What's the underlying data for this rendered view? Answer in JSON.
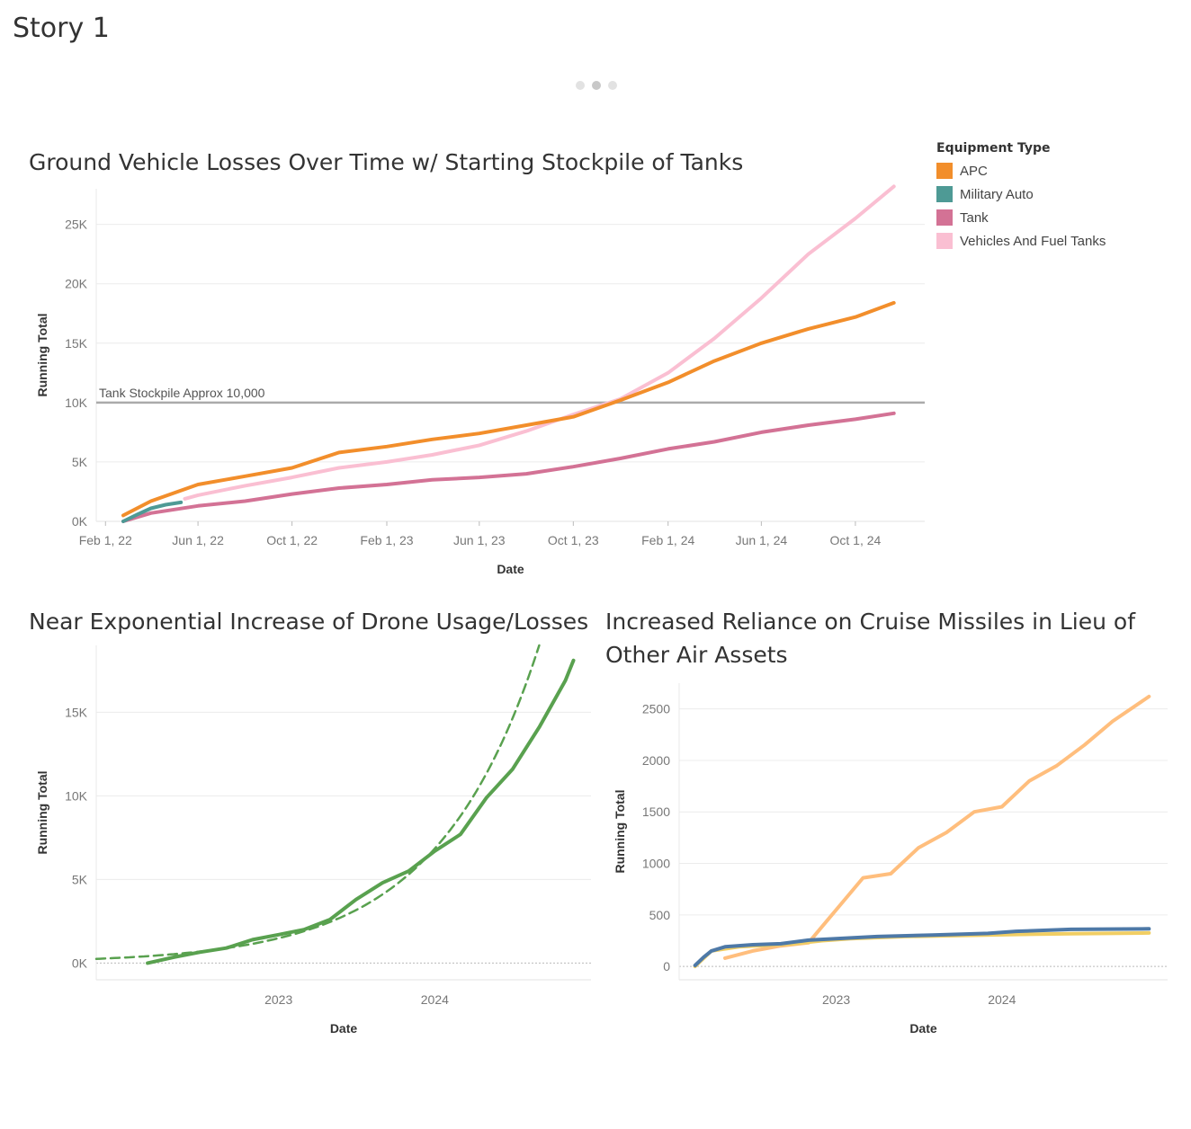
{
  "story": {
    "title": "Story 1"
  },
  "colors": {
    "apc": "#f28e2b",
    "military_auto": "#4e9a95",
    "tank": "#d37295",
    "vehicles": "#fabfd2",
    "drone": "#59a14f",
    "cruise": "#ffbe7d",
    "aircraft": "#f1ce63",
    "helicopter": "#4e79a7",
    "ref_line": "#aaaaaa"
  },
  "legend": {
    "title": "Equipment Type",
    "items": [
      {
        "label": "APC",
        "color": "#f28e2b"
      },
      {
        "label": "Military Auto",
        "color": "#4e9a95"
      },
      {
        "label": "Tank",
        "color": "#d37295"
      },
      {
        "label": "Vehicles And Fuel Tanks",
        "color": "#fabfd2"
      }
    ]
  },
  "chart_data": [
    {
      "type": "line",
      "title": "Ground Vehicle Losses Over Time w/ Starting Stockpile of Tanks",
      "xlabel": "Date",
      "ylabel": "Running Total",
      "x_ticks": [
        "Feb 1, 22",
        "Jun 1, 22",
        "Oct 1, 22",
        "Feb 1, 23",
        "Jun 1, 23",
        "Oct 1, 23",
        "Feb 1, 24",
        "Jun 1, 24",
        "Oct 1, 24"
      ],
      "y_ticks": [
        "0K",
        "5K",
        "10K",
        "15K",
        "20K",
        "25K"
      ],
      "ylim": [
        0,
        28000
      ],
      "grid": true,
      "legend_position": "right",
      "reference_line": {
        "value": 10000,
        "label": "Tank Stockpile Approx 10,000"
      },
      "series": [
        {
          "name": "APC",
          "x": [
            "2022-02-24",
            "2022-04-01",
            "2022-06-01",
            "2022-08-01",
            "2022-10-01",
            "2022-12-01",
            "2023-02-01",
            "2023-04-01",
            "2023-06-01",
            "2023-08-01",
            "2023-10-01",
            "2023-12-01",
            "2024-02-01",
            "2024-04-01",
            "2024-06-01",
            "2024-08-01",
            "2024-10-01",
            "2024-11-20"
          ],
          "values": [
            500,
            1700,
            3100,
            3800,
            4500,
            5800,
            6300,
            6900,
            7400,
            8100,
            8800,
            10200,
            11700,
            13500,
            15000,
            16200,
            17200,
            18400
          ]
        },
        {
          "name": "Military Auto",
          "x": [
            "2022-02-24",
            "2022-03-15",
            "2022-04-01",
            "2022-04-20",
            "2022-05-10"
          ],
          "values": [
            0,
            600,
            1100,
            1400,
            1600
          ]
        },
        {
          "name": "Tank",
          "x": [
            "2022-02-24",
            "2022-04-01",
            "2022-06-01",
            "2022-08-01",
            "2022-10-01",
            "2022-12-01",
            "2023-02-01",
            "2023-04-01",
            "2023-06-01",
            "2023-08-01",
            "2023-10-01",
            "2023-12-01",
            "2024-02-01",
            "2024-04-01",
            "2024-06-01",
            "2024-08-01",
            "2024-10-01",
            "2024-11-20"
          ],
          "values": [
            0,
            700,
            1300,
            1700,
            2300,
            2800,
            3100,
            3500,
            3700,
            4000,
            4600,
            5300,
            6100,
            6700,
            7500,
            8100,
            8600,
            9100
          ]
        },
        {
          "name": "Vehicles And Fuel Tanks",
          "x": [
            "2022-05-15",
            "2022-06-01",
            "2022-08-01",
            "2022-10-01",
            "2022-12-01",
            "2023-02-01",
            "2023-04-01",
            "2023-06-01",
            "2023-08-01",
            "2023-10-01",
            "2023-12-01",
            "2024-02-01",
            "2024-04-01",
            "2024-06-01",
            "2024-08-01",
            "2024-10-01",
            "2024-11-20"
          ],
          "values": [
            1900,
            2200,
            3000,
            3700,
            4500,
            5000,
            5600,
            6400,
            7600,
            9000,
            10300,
            12500,
            15400,
            18800,
            22500,
            25500,
            28200
          ]
        }
      ]
    },
    {
      "type": "line",
      "title": "Near Exponential Increase of Drone Usage/Losses",
      "xlabel": "Date",
      "ylabel": "Running Total",
      "x_ticks": [
        "2023",
        "2024"
      ],
      "y_ticks": [
        "0K",
        "5K",
        "10K",
        "15K"
      ],
      "ylim": [
        -1000,
        19000
      ],
      "grid": true,
      "series": [
        {
          "name": "",
          "x": [
            "2022-03-01",
            "2022-05-01",
            "2022-07-01",
            "2022-09-01",
            "2022-11-01",
            "2023-01-01",
            "2023-03-01",
            "2023-05-01",
            "2023-07-01",
            "2023-09-01",
            "2023-11-01",
            "2024-01-01",
            "2024-03-01",
            "2024-05-01",
            "2024-07-01",
            "2024-09-01",
            "2024-11-01",
            "2024-11-20"
          ],
          "values": [
            0,
            350,
            650,
            900,
            1400,
            1700,
            2000,
            2600,
            3800,
            4800,
            5500,
            6700,
            7700,
            9900,
            11600,
            14100,
            16900,
            18100
          ]
        },
        {
          "name": "",
          "trend": "exponential",
          "x": [
            "2021-11-01",
            "2022-03-01",
            "2022-07-01",
            "2022-11-01",
            "2023-03-01",
            "2023-07-01",
            "2023-11-01",
            "2024-01-01",
            "2024-03-01",
            "2024-05-01",
            "2024-07-01",
            "2024-09-01"
          ],
          "values": [
            250,
            350,
            520,
            780,
            1500,
            2500,
            4700,
            6400,
            8700,
            11800,
            15500,
            19000
          ]
        }
      ]
    },
    {
      "type": "line",
      "title": "Increased Reliance on Cruise Missiles in Lieu of Other Air Assets",
      "xlabel": "Date",
      "ylabel": "Running Total",
      "x_ticks": [
        "2023",
        "2024"
      ],
      "y_ticks": [
        "0",
        "500",
        "1000",
        "1500",
        "2000",
        "2500"
      ],
      "ylim": [
        -130,
        2750
      ],
      "grid": true,
      "series": [
        {
          "name": "",
          "x": [
            "2022-05-01",
            "2022-07-01",
            "2022-09-01",
            "2022-11-01",
            "2023-01-01",
            "2023-03-01",
            "2023-05-01",
            "2023-07-01",
            "2023-09-01",
            "2023-11-01",
            "2024-01-01",
            "2024-03-01",
            "2024-05-01",
            "2024-07-01",
            "2024-09-01",
            "2024-11-20"
          ],
          "values": [
            80,
            150,
            200,
            230,
            550,
            860,
            900,
            1150,
            1300,
            1500,
            1550,
            1800,
            1950,
            2150,
            2380,
            2620
          ]
        },
        {
          "name": "",
          "x": [
            "2022-02-24",
            "2022-04-01",
            "2022-06-01",
            "2022-08-01",
            "2022-10-01",
            "2022-12-01",
            "2023-02-01",
            "2023-06-01",
            "2023-10-01",
            "2024-02-01",
            "2024-06-01",
            "2024-11-20"
          ],
          "values": [
            0,
            150,
            190,
            205,
            220,
            250,
            270,
            290,
            300,
            310,
            318,
            325
          ]
        },
        {
          "name": "",
          "x": [
            "2022-02-24",
            "2022-03-15",
            "2022-04-01",
            "2022-05-01",
            "2022-07-01",
            "2022-09-01",
            "2022-11-01",
            "2023-01-01",
            "2023-04-01",
            "2023-08-01",
            "2023-12-01",
            "2024-02-01",
            "2024-06-01",
            "2024-11-20"
          ],
          "values": [
            10,
            90,
            150,
            190,
            210,
            220,
            255,
            270,
            290,
            305,
            320,
            340,
            360,
            365
          ]
        }
      ]
    }
  ]
}
